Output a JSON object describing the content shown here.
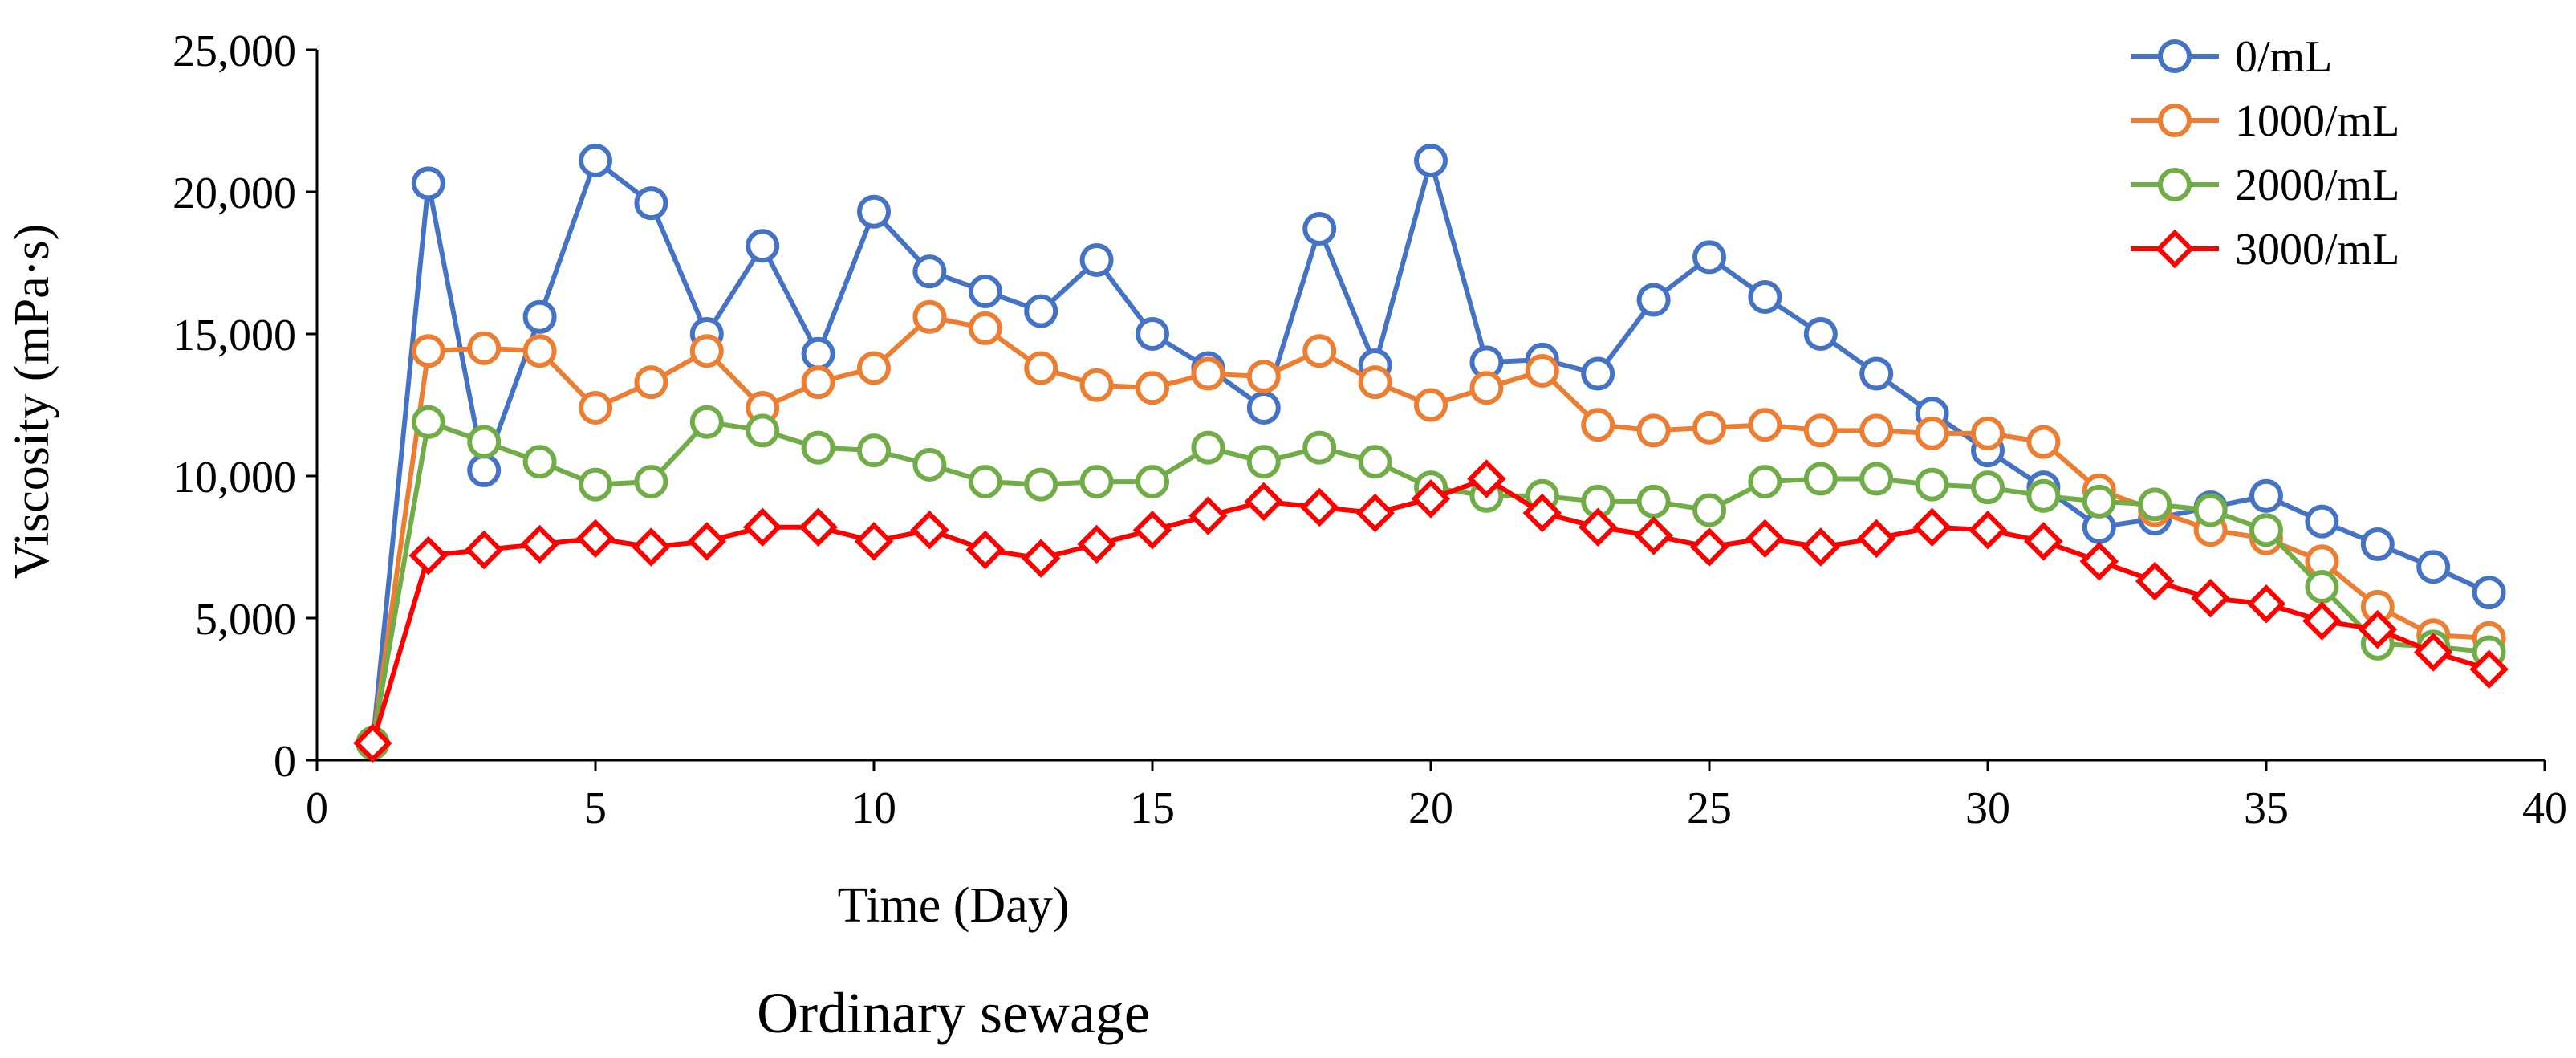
{
  "caption": "Ordinary sewage",
  "chart_data": {
    "type": "line",
    "title": "",
    "xlabel": "Time (Day)",
    "ylabel": "Viscosity (mPa·s)",
    "xlim": [
      0,
      40
    ],
    "ylim": [
      0,
      25000
    ],
    "xticks": [
      0,
      5,
      10,
      15,
      20,
      25,
      30,
      35,
      40
    ],
    "yticks": [
      0,
      5000,
      10000,
      15000,
      20000,
      25000
    ],
    "xtick_labels": [
      "0",
      "5",
      "10",
      "15",
      "20",
      "25",
      "30",
      "35",
      "40"
    ],
    "ytick_labels": [
      "0",
      "5,000",
      "10,000",
      "15,000",
      "20,000",
      "25,000"
    ],
    "grid": false,
    "legend_position": "top-right",
    "x": [
      1,
      2,
      3,
      4,
      5,
      6,
      7,
      8,
      9,
      10,
      11,
      12,
      13,
      14,
      15,
      16,
      17,
      18,
      19,
      20,
      21,
      22,
      23,
      24,
      25,
      26,
      27,
      28,
      29,
      30,
      31,
      32,
      33,
      34,
      35,
      36,
      37,
      38,
      39
    ],
    "series": [
      {
        "name": "0/mL",
        "color": "#4472C4",
        "marker": "circle",
        "values": [
          600,
          20300,
          10200,
          15600,
          21100,
          19600,
          15000,
          18100,
          14300,
          19300,
          17200,
          16500,
          15800,
          17600,
          15000,
          13800,
          12400,
          18700,
          13900,
          21100,
          14000,
          14100,
          13600,
          16200,
          17700,
          16300,
          15000,
          13600,
          12200,
          10900,
          9600,
          8200,
          8500,
          8900,
          9300,
          8400,
          7600,
          6800,
          5900
        ]
      },
      {
        "name": "1000/mL",
        "color": "#ED7D31",
        "marker": "circle",
        "values": [
          600,
          14400,
          14500,
          14400,
          12400,
          13300,
          14400,
          12400,
          13300,
          13800,
          15600,
          15200,
          13800,
          13200,
          13100,
          13600,
          13500,
          14400,
          13300,
          12500,
          13100,
          13700,
          11800,
          11600,
          11700,
          11800,
          11600,
          11600,
          11500,
          11500,
          11200,
          9500,
          8800,
          8100,
          7800,
          7000,
          5400,
          4400,
          4300
        ]
      },
      {
        "name": "2000/mL",
        "color": "#70AD47",
        "marker": "circle",
        "values": [
          600,
          11900,
          11200,
          10500,
          9700,
          9800,
          11900,
          11600,
          11000,
          10900,
          10400,
          9800,
          9700,
          9800,
          9800,
          11000,
          10500,
          11000,
          10500,
          9600,
          9300,
          9300,
          9100,
          9100,
          8800,
          9800,
          9900,
          9900,
          9700,
          9600,
          9300,
          9100,
          9000,
          8800,
          8100,
          6100,
          4100,
          4000,
          3800
        ]
      },
      {
        "name": "3000/mL",
        "color": "#FF0000",
        "marker": "diamond",
        "values": [
          600,
          7200,
          7400,
          7600,
          7800,
          7500,
          7700,
          8200,
          8200,
          7700,
          8100,
          7400,
          7100,
          7600,
          8100,
          8600,
          9100,
          8900,
          8700,
          9200,
          9900,
          8700,
          8200,
          7900,
          7500,
          7800,
          7500,
          7800,
          8200,
          8100,
          7700,
          7000,
          6300,
          5700,
          5500,
          4900,
          4600,
          3800,
          3200
        ]
      }
    ]
  }
}
